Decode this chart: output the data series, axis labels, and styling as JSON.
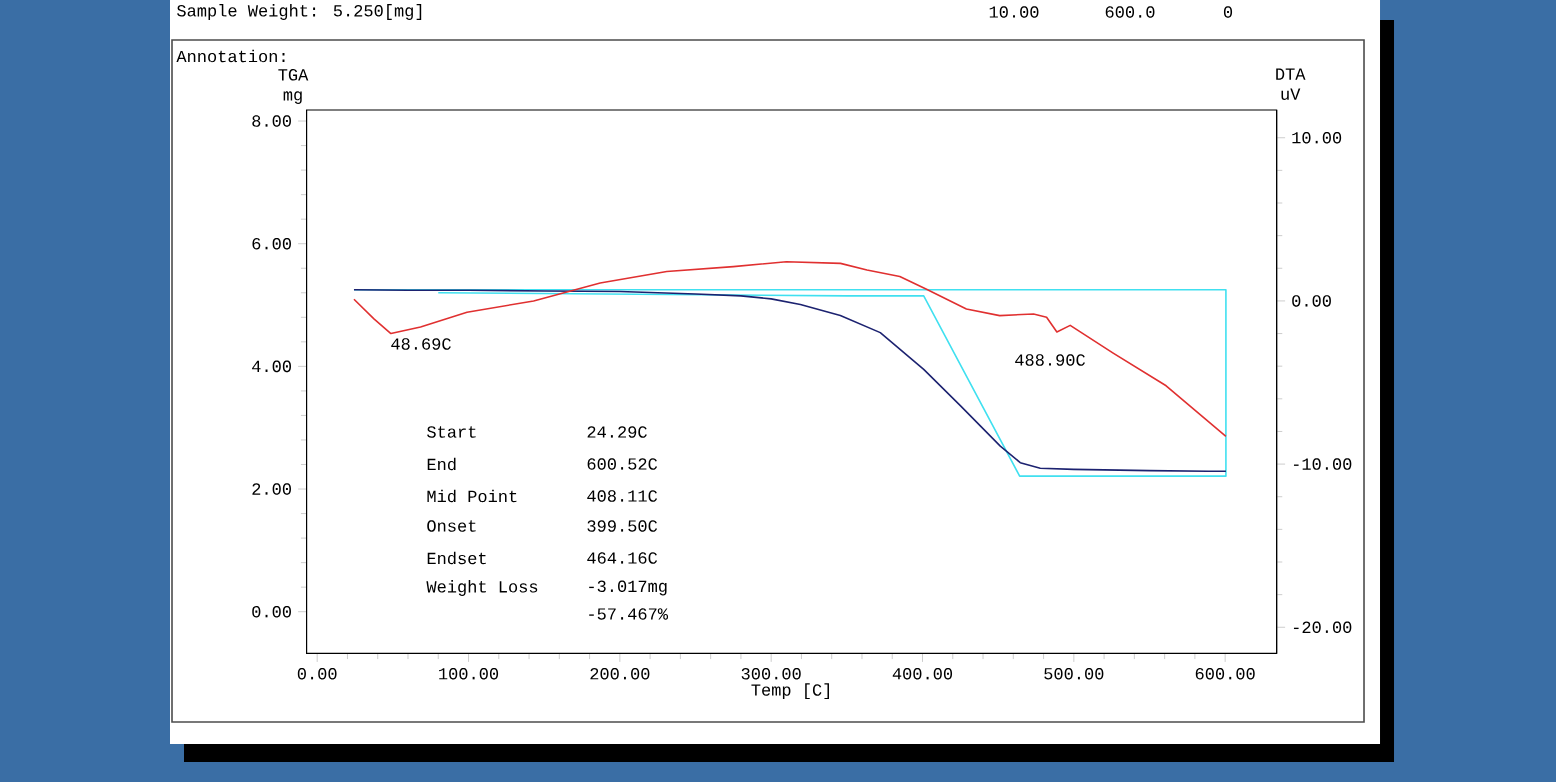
{
  "chart_data": {
    "type": "line",
    "xlabel": "Temp [C]",
    "ylabel": "TGA mg",
    "y2label": "DTA uV",
    "xlim": [
      -7,
      634
    ],
    "ylim": [
      -0.68,
      8.18
    ],
    "y2lim": [
      -21.6,
      11.7
    ],
    "xticks": [
      {
        "value": 0,
        "label": "0.00"
      },
      {
        "value": 100,
        "label": "100.00"
      },
      {
        "value": 200,
        "label": "200.00"
      },
      {
        "value": 300,
        "label": "300.00"
      },
      {
        "value": 400,
        "label": "400.00"
      },
      {
        "value": 500,
        "label": "500.00"
      },
      {
        "value": 600,
        "label": "600.00"
      }
    ],
    "yticks": [
      {
        "value": 0,
        "label": "0.00"
      },
      {
        "value": 2,
        "label": "2.00"
      },
      {
        "value": 4,
        "label": "4.00"
      },
      {
        "value": 6,
        "label": "6.00"
      },
      {
        "value": 8,
        "label": "8.00"
      }
    ],
    "y2ticks": [
      {
        "value": -20,
        "label": "-20.00"
      },
      {
        "value": -10,
        "label": "-10.00"
      },
      {
        "value": 0,
        "label": "0.00"
      },
      {
        "value": 10,
        "label": "10.00"
      }
    ],
    "series": [
      {
        "color": "#1c2270",
        "x": [
          24.3,
          60,
          100,
          150,
          200,
          250,
          280,
          300,
          319.3,
          345.7,
          372.1,
          400.8,
          425,
          438.2,
          451.4,
          464.6,
          477.8,
          499.9,
          550,
          588.8,
          600.5
        ],
        "values": [
          5.25,
          5.24,
          5.24,
          5.23,
          5.22,
          5.18,
          5.15,
          5.1,
          5.01,
          4.83,
          4.55,
          3.95,
          3.36,
          3.03,
          2.7,
          2.43,
          2.34,
          2.32,
          2.3,
          2.29,
          2.29
        ]
      },
      {
        "color": "#40e0f0",
        "x": [
          24.3,
          600.5,
          600.5,
          464.2,
          400.8,
          350,
          80
        ],
        "values": [
          5.25,
          5.25,
          2.21,
          2.21,
          5.15,
          5.15,
          5.2
        ]
      },
      {
        "color": "#e03030",
        "axis": "y2",
        "x": [
          24.3,
          37.5,
          48.7,
          68.3,
          99,
          143,
          187,
          231,
          275,
          310,
          345.8,
          363.3,
          385,
          403,
          429,
          451,
          473.4,
          482,
          488.8,
          497.6,
          526,
          561,
          600.5
        ],
        "values": [
          0.1,
          -1.1,
          -2.0,
          -1.6,
          -0.7,
          0,
          1.1,
          1.8,
          2.1,
          2.4,
          2.3,
          1.9,
          1.5,
          0.7,
          -0.5,
          -0.9,
          -0.8,
          -1.0,
          -1.9,
          -1.5,
          -3.2,
          -5.2,
          -8.3
        ]
      }
    ],
    "annotations": [
      "Sample Weight: 5.250[mg]",
      "10.00",
      "600.0",
      "0",
      "Annotation:",
      "48.69C",
      "488.90C",
      "Start",
      "24.29C",
      "End",
      "600.52C",
      "Mid Point",
      "408.11C",
      "Onset",
      "399.50C",
      "Endset",
      "464.16C",
      "Weight Loss",
      "-3.017mg",
      "-57.467%"
    ]
  }
}
